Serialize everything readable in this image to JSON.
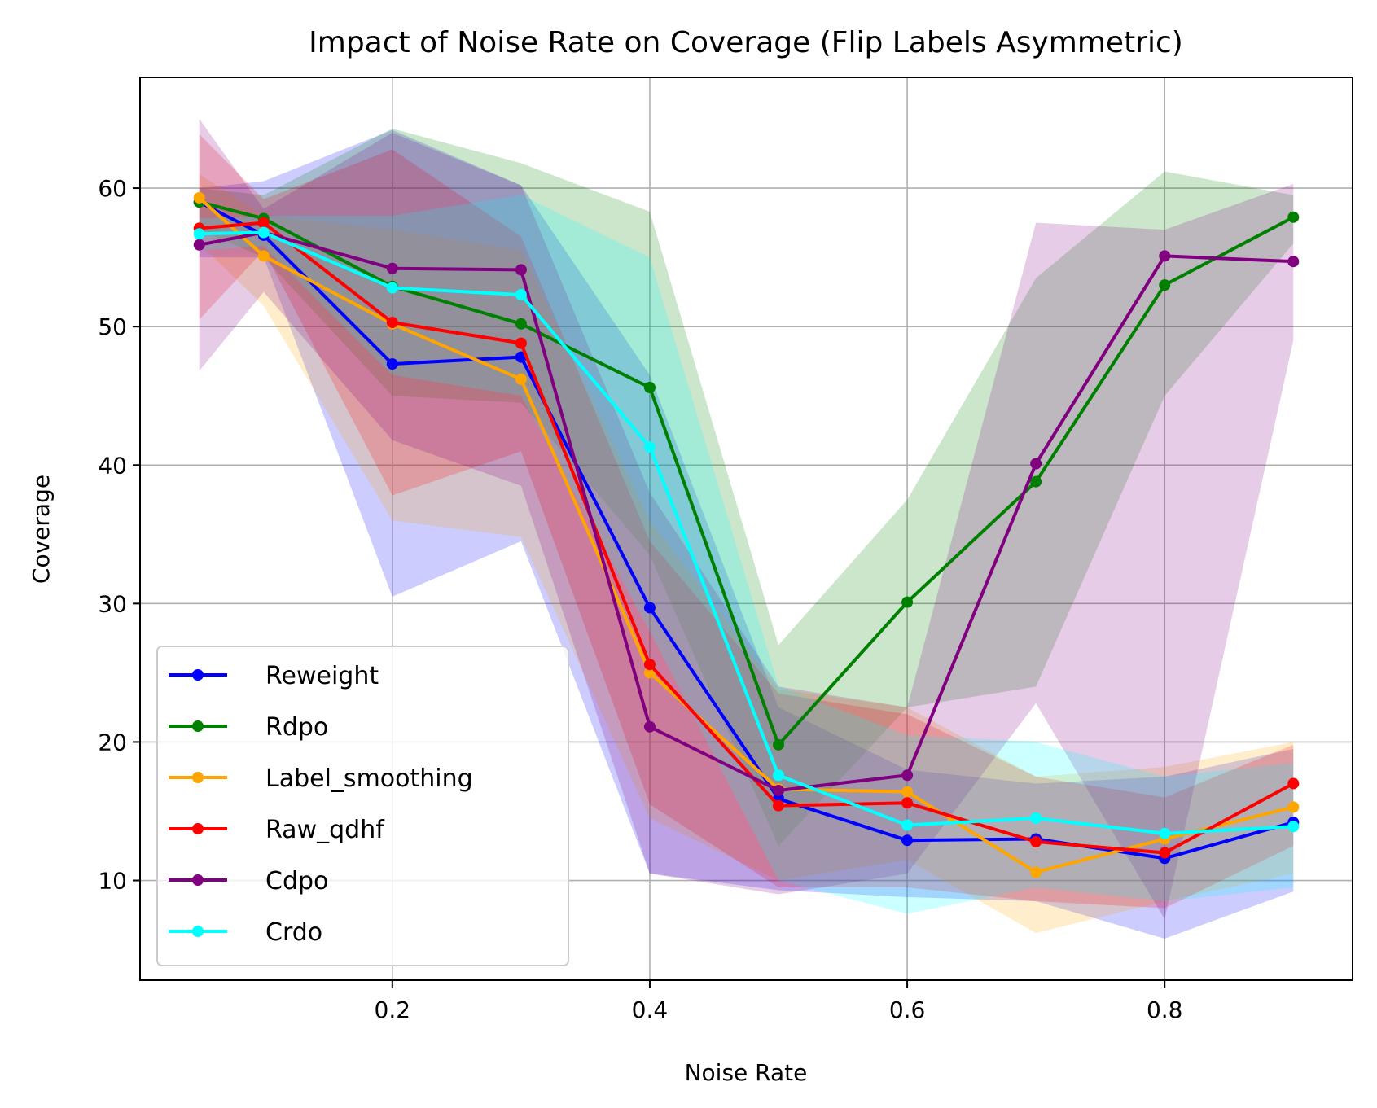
{
  "chart_data": {
    "type": "line",
    "title": "Impact of Noise Rate on Coverage (Flip Labels Asymmetric)",
    "xlabel": "Noise Rate",
    "ylabel": "Coverage",
    "xlim": [
      0.004,
      0.946
    ],
    "ylim": [
      2.8,
      68.0
    ],
    "xticks": [
      0.2,
      0.4,
      0.6,
      0.8
    ],
    "xtick_labels": [
      "0.2",
      "0.4",
      "0.6",
      "0.8"
    ],
    "yticks": [
      10,
      20,
      30,
      40,
      50,
      60
    ],
    "ytick_labels": [
      "10",
      "20",
      "30",
      "40",
      "50",
      "60"
    ],
    "grid": true,
    "legend_position": "lower-left",
    "x": [
      0.05,
      0.1,
      0.2,
      0.3,
      0.4,
      0.5,
      0.6,
      0.7,
      0.8,
      0.9
    ],
    "series": [
      {
        "name": "Reweight",
        "color": "#0000ff",
        "values": [
          59.0,
          56.6,
          47.3,
          47.8,
          29.7,
          15.9,
          12.9,
          13.0,
          11.6,
          14.2
        ],
        "band_lower": [
          55.0,
          55.0,
          30.5,
          34.5,
          10.5,
          9.3,
          8.8,
          8.5,
          5.8,
          9.2
        ],
        "band_upper": [
          60.0,
          60.5,
          64.2,
          60.2,
          46.5,
          22.5,
          18.0,
          17.0,
          17.5,
          19.5
        ]
      },
      {
        "name": "Rdpo",
        "color": "#008000",
        "values": [
          59.0,
          57.8,
          52.9,
          50.2,
          45.6,
          19.8,
          30.1,
          38.8,
          53.0,
          57.9
        ],
        "band_lower": [
          57.0,
          55.0,
          45.0,
          44.5,
          33.5,
          12.5,
          22.5,
          24.0,
          45.0,
          56.0
        ],
        "band_upper": [
          60.0,
          59.5,
          64.3,
          61.8,
          58.3,
          27.0,
          37.5,
          53.5,
          61.2,
          59.5
        ]
      },
      {
        "name": "Label_smoothing",
        "color": "#ffa500",
        "values": [
          59.3,
          55.1,
          50.2,
          46.2,
          25.0,
          16.6,
          16.4,
          10.6,
          13.0,
          15.3
        ],
        "band_lower": [
          56.0,
          51.5,
          36.0,
          34.8,
          14.5,
          10.0,
          11.5,
          6.2,
          8.5,
          10.5
        ],
        "band_upper": [
          61.0,
          58.0,
          57.0,
          55.5,
          36.0,
          23.8,
          22.5,
          17.5,
          18.2,
          20.0
        ]
      },
      {
        "name": "Raw_qdhf",
        "color": "#ff0000",
        "values": [
          57.1,
          57.5,
          50.3,
          48.8,
          25.6,
          15.4,
          15.6,
          12.8,
          12.0,
          17.0
        ],
        "band_lower": [
          50.5,
          55.5,
          37.8,
          41.0,
          15.5,
          9.5,
          9.5,
          8.5,
          8.0,
          12.5
        ],
        "band_upper": [
          63.9,
          59.2,
          62.8,
          56.5,
          34.5,
          23.5,
          22.0,
          17.5,
          16.0,
          19.8
        ]
      },
      {
        "name": "Cdpo",
        "color": "#800080",
        "values": [
          55.9,
          56.8,
          54.2,
          54.1,
          21.1,
          16.5,
          17.6,
          40.1,
          55.1,
          54.7
        ],
        "band_lower": [
          46.8,
          52.5,
          41.8,
          38.5,
          10.5,
          9.0,
          10.5,
          22.8,
          7.2,
          49.0
        ],
        "band_upper": [
          65.0,
          58.5,
          64.0,
          60.2,
          38.0,
          24.0,
          22.5,
          57.5,
          57.0,
          60.3
        ]
      },
      {
        "name": "Crdo",
        "color": "#00ffff",
        "values": [
          56.7,
          56.8,
          52.8,
          52.3,
          41.3,
          17.6,
          14.0,
          14.5,
          13.4,
          13.9
        ],
        "band_lower": [
          55.5,
          55.8,
          46.5,
          45.0,
          28.0,
          10.0,
          7.6,
          9.5,
          8.5,
          9.5
        ],
        "band_upper": [
          57.8,
          58.0,
          58.0,
          59.5,
          55.0,
          24.0,
          20.5,
          20.0,
          17.5,
          18.5
        ]
      }
    ]
  }
}
